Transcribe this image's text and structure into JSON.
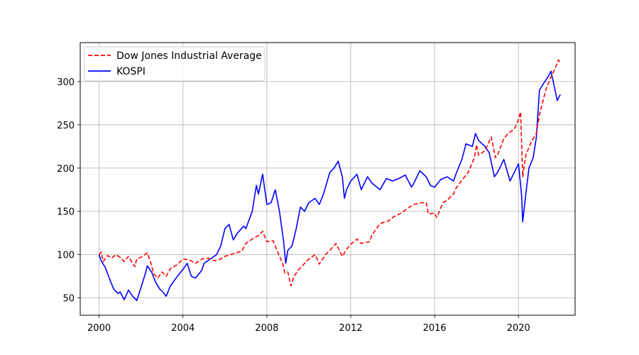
{
  "chart_data": {
    "type": "line",
    "title": "",
    "xlabel": "",
    "ylabel": "",
    "xlim": [
      1999.1,
      2022.7
    ],
    "ylim": [
      30,
      345
    ],
    "xticks": [
      2000,
      2004,
      2008,
      2012,
      2016,
      2020
    ],
    "yticks": [
      50,
      100,
      150,
      200,
      250,
      300
    ],
    "grid": true,
    "legend_position": "top-left",
    "series": [
      {
        "name": "Dow Jones Industrial Average",
        "color": "#ff0000",
        "style": "dashed",
        "points": [
          [
            2000.0,
            100
          ],
          [
            2000.1,
            103
          ],
          [
            2000.2,
            92
          ],
          [
            2000.4,
            99
          ],
          [
            2000.6,
            96
          ],
          [
            2000.8,
            100
          ],
          [
            2001.0,
            97
          ],
          [
            2001.2,
            92
          ],
          [
            2001.4,
            98
          ],
          [
            2001.7,
            86
          ],
          [
            2001.8,
            95
          ],
          [
            2002.0,
            97
          ],
          [
            2002.3,
            102
          ],
          [
            2002.5,
            88
          ],
          [
            2002.6,
            78
          ],
          [
            2002.8,
            73
          ],
          [
            2003.0,
            80
          ],
          [
            2003.2,
            75
          ],
          [
            2003.4,
            84
          ],
          [
            2003.7,
            88
          ],
          [
            2004.0,
            95
          ],
          [
            2004.3,
            94
          ],
          [
            2004.6,
            90
          ],
          [
            2004.9,
            95
          ],
          [
            2005.2,
            96
          ],
          [
            2005.5,
            93
          ],
          [
            2005.8,
            95
          ],
          [
            2006.0,
            98
          ],
          [
            2006.4,
            101
          ],
          [
            2006.8,
            104
          ],
          [
            2007.0,
            113
          ],
          [
            2007.3,
            118
          ],
          [
            2007.6,
            122
          ],
          [
            2007.8,
            127
          ],
          [
            2008.0,
            115
          ],
          [
            2008.3,
            116
          ],
          [
            2008.5,
            104
          ],
          [
            2008.75,
            90
          ],
          [
            2008.85,
            79
          ],
          [
            2009.0,
            80
          ],
          [
            2009.15,
            64
          ],
          [
            2009.3,
            75
          ],
          [
            2009.5,
            82
          ],
          [
            2009.8,
            90
          ],
          [
            2010.0,
            95
          ],
          [
            2010.3,
            100
          ],
          [
            2010.5,
            89
          ],
          [
            2010.8,
            100
          ],
          [
            2011.0,
            105
          ],
          [
            2011.3,
            113
          ],
          [
            2011.6,
            98
          ],
          [
            2011.8,
            106
          ],
          [
            2012.0,
            112
          ],
          [
            2012.3,
            118
          ],
          [
            2012.5,
            113
          ],
          [
            2012.9,
            115
          ],
          [
            2013.0,
            122
          ],
          [
            2013.4,
            136
          ],
          [
            2013.8,
            139
          ],
          [
            2014.0,
            143
          ],
          [
            2014.4,
            148
          ],
          [
            2014.8,
            155
          ],
          [
            2015.0,
            158
          ],
          [
            2015.4,
            160
          ],
          [
            2015.6,
            160
          ],
          [
            2015.7,
            147
          ],
          [
            2016.0,
            148
          ],
          [
            2016.1,
            143
          ],
          [
            2016.4,
            160
          ],
          [
            2016.6,
            163
          ],
          [
            2016.9,
            170
          ],
          [
            2017.0,
            176
          ],
          [
            2017.3,
            186
          ],
          [
            2017.6,
            195
          ],
          [
            2017.9,
            212
          ],
          [
            2018.0,
            227
          ],
          [
            2018.1,
            215
          ],
          [
            2018.4,
            220
          ],
          [
            2018.7,
            236
          ],
          [
            2018.9,
            212
          ],
          [
            2019.0,
            215
          ],
          [
            2019.3,
            234
          ],
          [
            2019.5,
            240
          ],
          [
            2019.8,
            245
          ],
          [
            2020.0,
            256
          ],
          [
            2020.1,
            265
          ],
          [
            2020.2,
            190
          ],
          [
            2020.35,
            215
          ],
          [
            2020.6,
            230
          ],
          [
            2020.85,
            240
          ],
          [
            2021.0,
            262
          ],
          [
            2021.3,
            290
          ],
          [
            2021.5,
            303
          ],
          [
            2021.75,
            315
          ],
          [
            2021.9,
            325
          ],
          [
            2022.0,
            321
          ]
        ]
      },
      {
        "name": "KOSPI",
        "color": "#0000ff",
        "style": "solid",
        "points": [
          [
            2000.0,
            100
          ],
          [
            2000.1,
            93
          ],
          [
            2000.3,
            85
          ],
          [
            2000.5,
            72
          ],
          [
            2000.7,
            60
          ],
          [
            2000.9,
            55
          ],
          [
            2001.0,
            57
          ],
          [
            2001.2,
            48
          ],
          [
            2001.4,
            59
          ],
          [
            2001.6,
            52
          ],
          [
            2001.8,
            47
          ],
          [
            2002.0,
            62
          ],
          [
            2002.2,
            78
          ],
          [
            2002.3,
            87
          ],
          [
            2002.5,
            80
          ],
          [
            2002.7,
            68
          ],
          [
            2002.9,
            60
          ],
          [
            2003.0,
            58
          ],
          [
            2003.2,
            52
          ],
          [
            2003.4,
            64
          ],
          [
            2003.7,
            74
          ],
          [
            2004.0,
            83
          ],
          [
            2004.2,
            90
          ],
          [
            2004.4,
            75
          ],
          [
            2004.6,
            73
          ],
          [
            2004.9,
            82
          ],
          [
            2005.0,
            90
          ],
          [
            2005.3,
            95
          ],
          [
            2005.6,
            100
          ],
          [
            2005.8,
            110
          ],
          [
            2006.0,
            130
          ],
          [
            2006.2,
            135
          ],
          [
            2006.4,
            117
          ],
          [
            2006.6,
            125
          ],
          [
            2006.9,
            133
          ],
          [
            2007.0,
            130
          ],
          [
            2007.3,
            150
          ],
          [
            2007.5,
            180
          ],
          [
            2007.6,
            170
          ],
          [
            2007.8,
            193
          ],
          [
            2008.0,
            158
          ],
          [
            2008.2,
            160
          ],
          [
            2008.4,
            175
          ],
          [
            2008.6,
            150
          ],
          [
            2008.8,
            115
          ],
          [
            2008.9,
            90
          ],
          [
            2009.0,
            105
          ],
          [
            2009.2,
            110
          ],
          [
            2009.4,
            130
          ],
          [
            2009.6,
            155
          ],
          [
            2009.8,
            150
          ],
          [
            2010.0,
            160
          ],
          [
            2010.3,
            165
          ],
          [
            2010.5,
            158
          ],
          [
            2010.7,
            170
          ],
          [
            2011.0,
            195
          ],
          [
            2011.2,
            200
          ],
          [
            2011.4,
            208
          ],
          [
            2011.6,
            190
          ],
          [
            2011.7,
            165
          ],
          [
            2011.8,
            175
          ],
          [
            2012.0,
            185
          ],
          [
            2012.3,
            193
          ],
          [
            2012.5,
            175
          ],
          [
            2012.8,
            190
          ],
          [
            2013.0,
            183
          ],
          [
            2013.4,
            175
          ],
          [
            2013.7,
            188
          ],
          [
            2014.0,
            185
          ],
          [
            2014.3,
            188
          ],
          [
            2014.6,
            192
          ],
          [
            2014.9,
            178
          ],
          [
            2015.0,
            182
          ],
          [
            2015.3,
            197
          ],
          [
            2015.6,
            190
          ],
          [
            2015.8,
            180
          ],
          [
            2016.0,
            178
          ],
          [
            2016.3,
            187
          ],
          [
            2016.6,
            190
          ],
          [
            2016.9,
            185
          ],
          [
            2017.0,
            192
          ],
          [
            2017.3,
            210
          ],
          [
            2017.5,
            228
          ],
          [
            2017.8,
            225
          ],
          [
            2017.95,
            240
          ],
          [
            2018.1,
            232
          ],
          [
            2018.4,
            225
          ],
          [
            2018.6,
            218
          ],
          [
            2018.85,
            190
          ],
          [
            2019.0,
            195
          ],
          [
            2019.3,
            210
          ],
          [
            2019.6,
            185
          ],
          [
            2019.9,
            200
          ],
          [
            2020.0,
            205
          ],
          [
            2020.15,
            168
          ],
          [
            2020.2,
            138
          ],
          [
            2020.35,
            170
          ],
          [
            2020.5,
            200
          ],
          [
            2020.7,
            212
          ],
          [
            2020.85,
            235
          ],
          [
            2021.0,
            290
          ],
          [
            2021.2,
            298
          ],
          [
            2021.4,
            305
          ],
          [
            2021.55,
            312
          ],
          [
            2021.7,
            295
          ],
          [
            2021.85,
            278
          ],
          [
            2021.95,
            283
          ],
          [
            2022.0,
            285
          ]
        ]
      }
    ]
  }
}
